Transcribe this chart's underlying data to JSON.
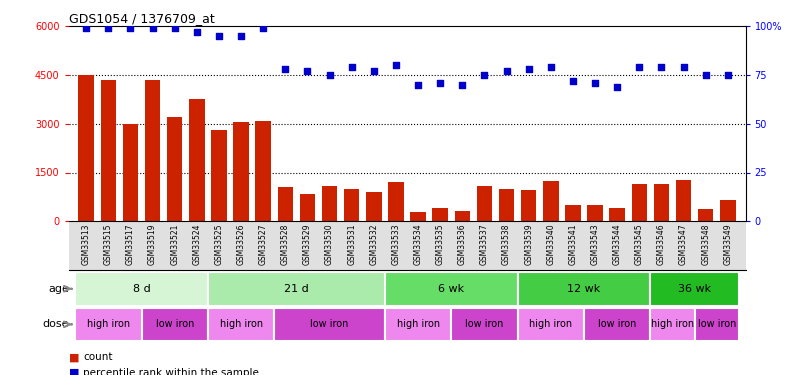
{
  "title": "GDS1054 / 1376709_at",
  "samples": [
    "GSM33513",
    "GSM33515",
    "GSM33517",
    "GSM33519",
    "GSM33521",
    "GSM33524",
    "GSM33525",
    "GSM33526",
    "GSM33527",
    "GSM33528",
    "GSM33529",
    "GSM33530",
    "GSM33531",
    "GSM33532",
    "GSM33533",
    "GSM33534",
    "GSM33535",
    "GSM33536",
    "GSM33537",
    "GSM33538",
    "GSM33539",
    "GSM33540",
    "GSM33541",
    "GSM33543",
    "GSM33544",
    "GSM33545",
    "GSM33546",
    "GSM33547",
    "GSM33548",
    "GSM33549"
  ],
  "counts": [
    4500,
    4350,
    3000,
    4350,
    3200,
    3750,
    2800,
    3050,
    3100,
    1050,
    850,
    1100,
    1000,
    900,
    1200,
    280,
    420,
    320,
    1100,
    1000,
    950,
    1250,
    500,
    500,
    420,
    1150,
    1150,
    1280,
    380,
    650
  ],
  "percentile": [
    99,
    99,
    99,
    99,
    99,
    97,
    95,
    95,
    99,
    78,
    77,
    75,
    79,
    77,
    80,
    70,
    71,
    70,
    75,
    77,
    78,
    79,
    72,
    71,
    69,
    79,
    79,
    79,
    75,
    75
  ],
  "age_groups": [
    {
      "label": "8 d",
      "start": 0,
      "end": 6,
      "color": "#d5f5d5"
    },
    {
      "label": "21 d",
      "start": 6,
      "end": 14,
      "color": "#aaeaaa"
    },
    {
      "label": "6 wk",
      "start": 14,
      "end": 20,
      "color": "#66dd66"
    },
    {
      "label": "12 wk",
      "start": 20,
      "end": 26,
      "color": "#44cc44"
    },
    {
      "label": "36 wk",
      "start": 26,
      "end": 30,
      "color": "#22bb22"
    }
  ],
  "dose_groups": [
    {
      "label": "high iron",
      "start": 0,
      "end": 3,
      "color": "#ee88ee"
    },
    {
      "label": "low iron",
      "start": 3,
      "end": 6,
      "color": "#cc44cc"
    },
    {
      "label": "high iron",
      "start": 6,
      "end": 9,
      "color": "#ee88ee"
    },
    {
      "label": "low iron",
      "start": 9,
      "end": 14,
      "color": "#cc44cc"
    },
    {
      "label": "high iron",
      "start": 14,
      "end": 17,
      "color": "#ee88ee"
    },
    {
      "label": "low iron",
      "start": 17,
      "end": 20,
      "color": "#cc44cc"
    },
    {
      "label": "high iron",
      "start": 20,
      "end": 23,
      "color": "#ee88ee"
    },
    {
      "label": "low iron",
      "start": 23,
      "end": 26,
      "color": "#cc44cc"
    },
    {
      "label": "high iron",
      "start": 26,
      "end": 28,
      "color": "#ee88ee"
    },
    {
      "label": "low iron",
      "start": 28,
      "end": 30,
      "color": "#cc44cc"
    }
  ],
  "bar_color": "#cc2200",
  "scatter_color": "#0000cc",
  "ylim_left": [
    0,
    6000
  ],
  "ylim_right": [
    0,
    100
  ],
  "yticks_left": [
    0,
    1500,
    3000,
    4500,
    6000
  ],
  "yticks_right": [
    0,
    25,
    50,
    75,
    100
  ],
  "yticklabels_right": [
    "0",
    "25",
    "50",
    "75",
    "100%"
  ]
}
